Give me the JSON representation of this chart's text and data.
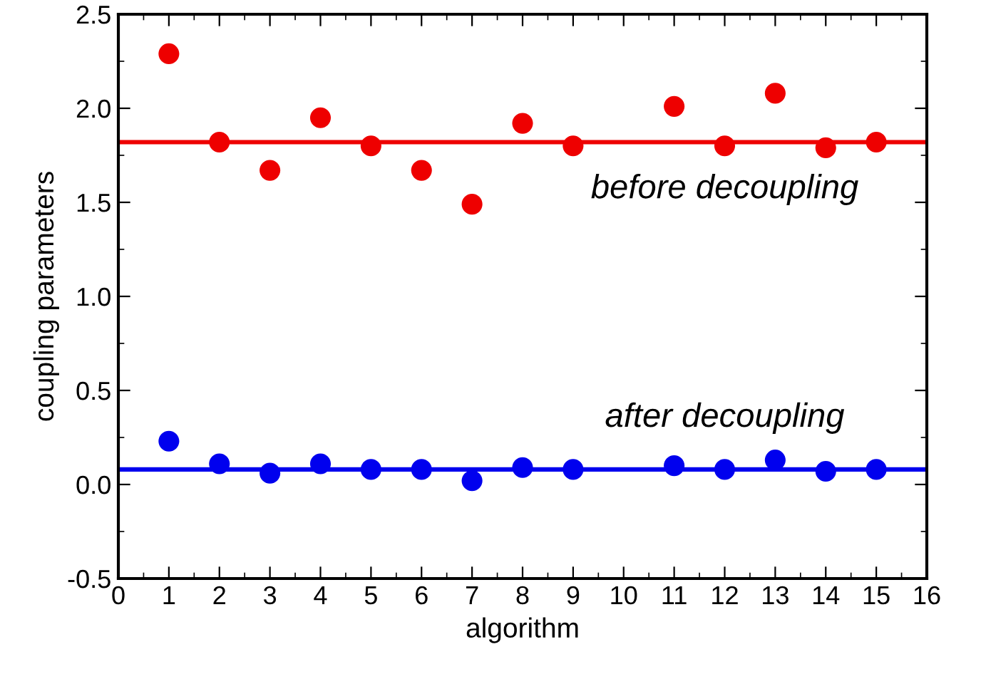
{
  "chart_data": {
    "type": "scatter",
    "xlabel": "algorithm",
    "ylabel": "coupling parameters",
    "xlim": [
      0,
      16
    ],
    "xticks": [
      0,
      1,
      2,
      3,
      4,
      5,
      6,
      7,
      8,
      9,
      10,
      11,
      12,
      13,
      14,
      15,
      16
    ],
    "ylim": [
      -0.5,
      2.5
    ],
    "yticks": [
      {
        "value": -0.5,
        "label": "-0.5"
      },
      {
        "value": 0,
        "label": "0.0"
      },
      {
        "value": 0.5,
        "label": "0.5"
      },
      {
        "value": 1,
        "label": "1.0"
      },
      {
        "value": 1.5,
        "label": "1.5"
      },
      {
        "value": 2,
        "label": "2.0"
      },
      {
        "value": 2.5,
        "label": "2.5"
      }
    ],
    "x": [
      1,
      2,
      3,
      4,
      5,
      6,
      7,
      8,
      9,
      11,
      12,
      13,
      14,
      15
    ],
    "series": [
      {
        "color": "#ee0000",
        "values": [
          2.29,
          1.82,
          1.67,
          1.95,
          1.8,
          1.67,
          1.49,
          1.92,
          1.8,
          2.01,
          1.8,
          2.08,
          1.79,
          1.82
        ]
      },
      {
        "color": "#0000ee",
        "values": [
          0.23,
          0.11,
          0.06,
          0.11,
          0.08,
          0.08,
          0.02,
          0.09,
          0.08,
          0.1,
          0.08,
          0.13,
          0.07,
          0.08
        ]
      }
    ],
    "ref_lines": [
      {
        "axis": "y",
        "value": 1.82,
        "color": "#ee0000"
      },
      {
        "axis": "y",
        "value": 0.08,
        "color": "#0000ee"
      }
    ],
    "annotations": [
      {
        "text": "before decoupling",
        "x": 12,
        "y": 1.82
      },
      {
        "text": "after decoupling",
        "x": 12,
        "y": 0.08
      }
    ],
    "marker": "circle",
    "grid": false,
    "legend": false
  }
}
